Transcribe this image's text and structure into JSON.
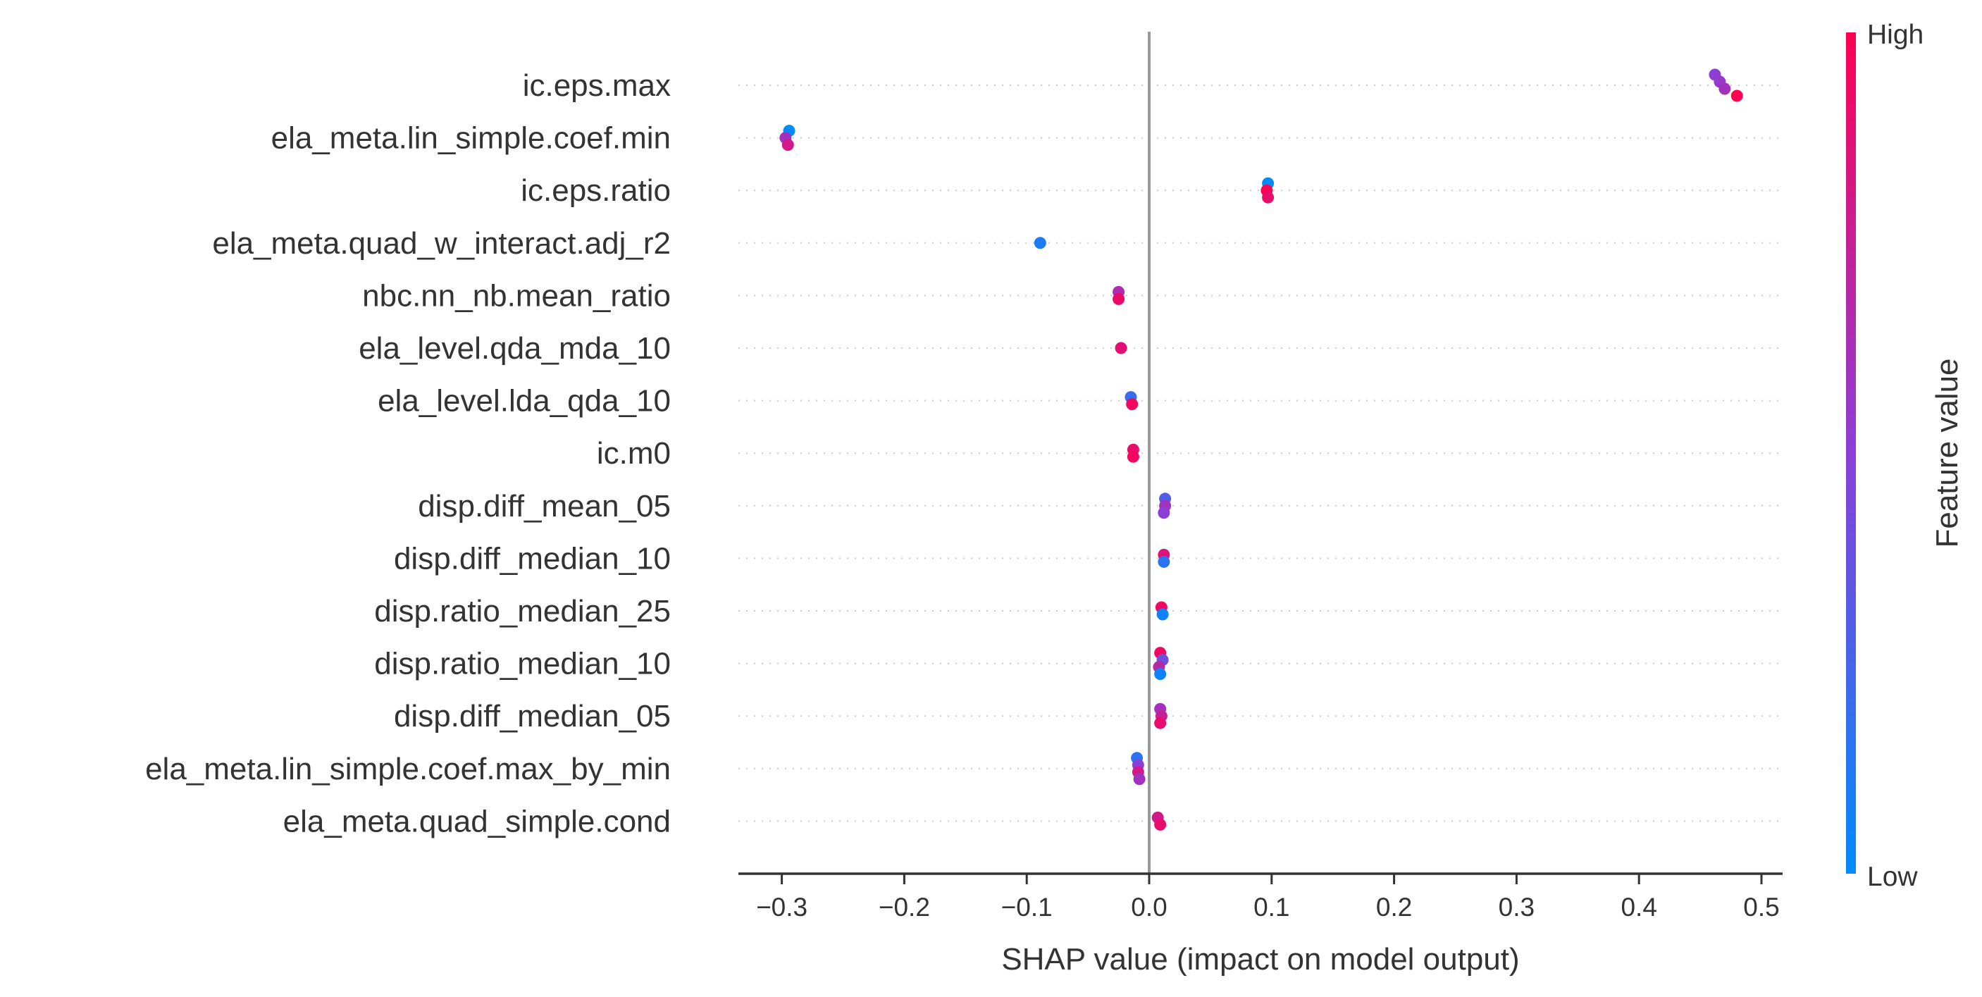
{
  "chart_data": {
    "type": "scatter",
    "subtype": "shap-beeswarm",
    "title": "",
    "xlabel": "SHAP value (impact on model output)",
    "xlim": [
      -0.335,
      0.52
    ],
    "xticks": [
      -0.3,
      -0.2,
      -0.1,
      0.0,
      0.1,
      0.2,
      0.3,
      0.4,
      0.5
    ],
    "xtick_labels": [
      "−0.3",
      "−0.2",
      "−0.1",
      "0.0",
      "0.1",
      "0.2",
      "0.3",
      "0.4",
      "0.5"
    ],
    "zero_line": 0.0,
    "grid": "dotted horizontal lines per feature",
    "colorbar": {
      "title": "Feature value",
      "high_label": "High",
      "low_label": "Low",
      "high_color": "#ff0052",
      "mid_color": "#8b3fd8",
      "low_color": "#008bfb"
    },
    "features": [
      {
        "name": "ic.eps.max",
        "points": [
          [
            0.462,
            0.5
          ],
          [
            0.466,
            0.55
          ],
          [
            0.47,
            0.6
          ],
          [
            0.48,
            1.0
          ]
        ]
      },
      {
        "name": "ela_meta.lin_simple.coef.min",
        "points": [
          [
            -0.294,
            0.0
          ],
          [
            -0.297,
            0.6
          ],
          [
            -0.295,
            0.8
          ]
        ]
      },
      {
        "name": "ic.eps.ratio",
        "points": [
          [
            0.097,
            0.0
          ],
          [
            0.096,
            1.0
          ],
          [
            0.097,
            0.9
          ]
        ]
      },
      {
        "name": "ela_meta.quad_w_interact.adj_r2",
        "points": [
          [
            -0.089,
            0.1
          ]
        ]
      },
      {
        "name": "nbc.nn_nb.mean_ratio",
        "points": [
          [
            -0.025,
            0.65
          ],
          [
            -0.025,
            0.92
          ]
        ]
      },
      {
        "name": "ela_level.qda_mda_10",
        "points": [
          [
            -0.023,
            0.88
          ]
        ]
      },
      {
        "name": "ela_level.lda_qda_10",
        "points": [
          [
            -0.015,
            0.2
          ],
          [
            -0.014,
            0.95
          ]
        ]
      },
      {
        "name": "ic.m0",
        "points": [
          [
            -0.013,
            0.9
          ],
          [
            -0.013,
            0.95
          ]
        ]
      },
      {
        "name": "disp.diff_mean_05",
        "points": [
          [
            0.013,
            0.3
          ],
          [
            0.013,
            0.6
          ],
          [
            0.012,
            0.5
          ]
        ]
      },
      {
        "name": "disp.diff_median_10",
        "points": [
          [
            0.012,
            0.85
          ],
          [
            0.012,
            0.15
          ]
        ]
      },
      {
        "name": "disp.ratio_median_25",
        "points": [
          [
            0.01,
            0.95
          ],
          [
            0.011,
            0.05
          ]
        ]
      },
      {
        "name": "disp.ratio_median_10",
        "points": [
          [
            0.009,
            0.95
          ],
          [
            0.011,
            0.4
          ],
          [
            0.008,
            0.7
          ],
          [
            0.009,
            0.05
          ]
        ]
      },
      {
        "name": "disp.diff_median_05",
        "points": [
          [
            0.009,
            0.6
          ],
          [
            0.01,
            0.75
          ],
          [
            0.009,
            0.9
          ]
        ]
      },
      {
        "name": "ela_meta.lin_simple.coef.max_by_min",
        "points": [
          [
            -0.01,
            0.15
          ],
          [
            -0.009,
            0.5
          ],
          [
            -0.009,
            0.8
          ],
          [
            -0.008,
            0.6
          ]
        ]
      },
      {
        "name": "ela_meta.quad_simple.cond",
        "points": [
          [
            0.007,
            0.8
          ],
          [
            0.009,
            0.9
          ]
        ]
      }
    ]
  }
}
